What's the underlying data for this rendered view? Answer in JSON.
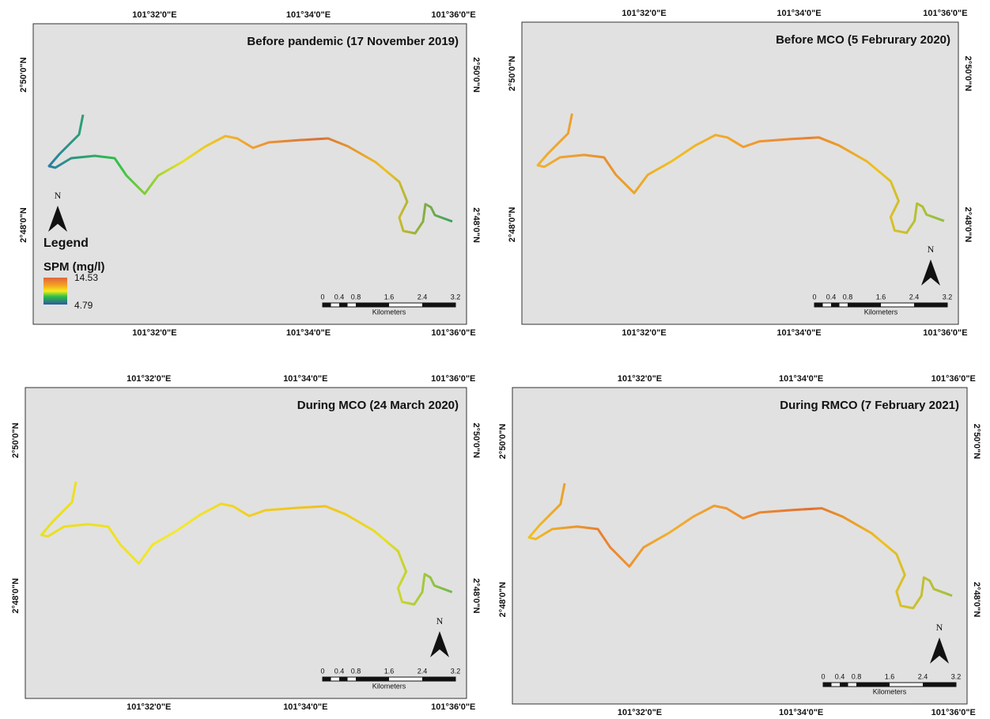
{
  "panels": [
    {
      "title": "Before pandemic (17 November 2019)",
      "top_lon": [
        "101°32'0\"E",
        "101°34'0\"E",
        "101°36'0\"E"
      ],
      "bottom_lon": [
        "101°32'0\"E",
        "101°34'0\"E",
        "101°36'0\"E"
      ],
      "left_lat": [
        "2°50'0\"N",
        "2°48'0\"N"
      ],
      "right_lat": [
        "2°50'0\"N",
        "2°48'0\"N"
      ],
      "north": "N",
      "scale": {
        "ticks": [
          "0",
          "0.4",
          "0.8",
          "1.6",
          "2.4",
          "3.2"
        ],
        "unit": "Kilometers"
      }
    },
    {
      "title": "Before MCO (5 Februrary 2020)",
      "top_lon": [
        "101°32'0\"E",
        "101°34'0\"E",
        "101°36'0\"E"
      ],
      "bottom_lon": [
        "101°32'0\"E",
        "101°34'0\"E",
        "101°36'0\"E"
      ],
      "left_lat": [
        "2°50'0\"N",
        "2°48'0\"N"
      ],
      "right_lat": [
        "2°50'0\"N",
        "2°48'0\"N"
      ],
      "north": "N",
      "scale": {
        "ticks": [
          "0",
          "0.4",
          "0.8",
          "1.6",
          "2.4",
          "3.2"
        ],
        "unit": "Kilometers"
      }
    },
    {
      "title": "During MCO (24 March 2020)",
      "top_lon": [
        "101°32'0\"E",
        "101°34'0\"E",
        "101°36'0\"E"
      ],
      "bottom_lon": [
        "101°32'0\"E",
        "101°34'0\"E",
        "101°36'0\"E"
      ],
      "left_lat": [
        "2°50'0\"N",
        "2°48'0\"N"
      ],
      "right_lat": [
        "2°50'0\"N",
        "2°48'0\"N"
      ],
      "north": "N",
      "scale": {
        "ticks": [
          "0",
          "0.4",
          "0.8",
          "1.6",
          "2.4",
          "3.2"
        ],
        "unit": "Kilometers"
      }
    },
    {
      "title": "During RMCO (7 February 2021)",
      "top_lon": [
        "101°32'0\"E",
        "101°34'0\"E",
        "101°36'0\"E"
      ],
      "bottom_lon": [
        "101°32'0\"E",
        "101°34'0\"E",
        "101°36'0\"E"
      ],
      "left_lat": [
        "2°50'0\"N",
        "2°48'0\"N"
      ],
      "right_lat": [
        "2°50'0\"N",
        "2°48'0\"N"
      ],
      "north": "N",
      "scale": {
        "ticks": [
          "0",
          "0.4",
          "0.8",
          "1.6",
          "2.4",
          "3.2"
        ],
        "unit": "Kilometers"
      }
    }
  ],
  "legend": {
    "title": "Legend",
    "variable": "SPM (mg/l)",
    "max": "14.53",
    "min": "4.79"
  }
}
